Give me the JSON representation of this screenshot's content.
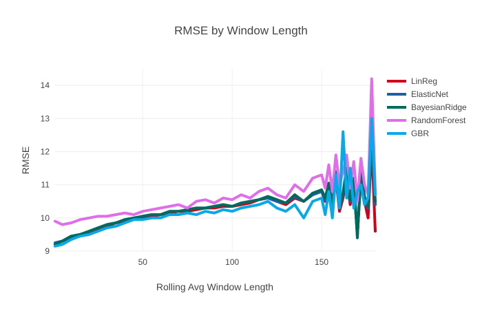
{
  "chart_data": {
    "type": "line",
    "title": "RMSE by Window Length",
    "xlabel": "Rolling Avg Window Length",
    "ylabel": "RMSE",
    "xlim": [
      1,
      180
    ],
    "ylim": [
      9,
      14.5
    ],
    "xticks": [
      50,
      100,
      150
    ],
    "yticks": [
      9,
      10,
      11,
      12,
      13,
      14
    ],
    "grid": true,
    "legend": "top-right, outside plot",
    "x": [
      1,
      5,
      10,
      15,
      20,
      25,
      30,
      35,
      40,
      45,
      50,
      55,
      60,
      65,
      70,
      75,
      80,
      85,
      90,
      95,
      100,
      105,
      110,
      115,
      120,
      125,
      130,
      135,
      140,
      145,
      150,
      152,
      154,
      156,
      158,
      160,
      162,
      164,
      166,
      168,
      170,
      172,
      174,
      176,
      178,
      180
    ],
    "series": [
      {
        "name": "LinReg",
        "color": "#d0021b",
        "values": [
          9.2,
          9.3,
          9.4,
          9.5,
          9.55,
          9.65,
          9.75,
          9.85,
          9.9,
          9.95,
          10.0,
          10.05,
          10.1,
          10.15,
          10.2,
          10.2,
          10.25,
          10.3,
          10.3,
          10.35,
          10.35,
          10.4,
          10.45,
          10.55,
          10.6,
          10.5,
          10.4,
          10.6,
          10.5,
          10.7,
          10.8,
          10.5,
          10.9,
          10.3,
          11.2,
          10.2,
          10.6,
          11.2,
          10.4,
          11.0,
          9.5,
          11.2,
          10.5,
          10.0,
          12.2,
          9.6
        ]
      },
      {
        "name": "ElasticNet",
        "color": "#1f5fa8",
        "values": [
          9.25,
          9.3,
          9.45,
          9.5,
          9.6,
          9.7,
          9.8,
          9.85,
          9.95,
          10.0,
          10.05,
          10.1,
          10.1,
          10.2,
          10.2,
          10.25,
          10.3,
          10.3,
          10.35,
          10.4,
          10.35,
          10.45,
          10.5,
          10.55,
          10.6,
          10.5,
          10.45,
          10.65,
          10.5,
          10.7,
          10.8,
          10.55,
          11.0,
          10.35,
          11.3,
          10.3,
          10.7,
          11.4,
          10.5,
          11.1,
          9.45,
          11.4,
          10.6,
          10.3,
          12.4,
          10.4
        ]
      },
      {
        "name": "BayesianRidge",
        "color": "#006b5d",
        "values": [
          9.2,
          9.3,
          9.45,
          9.5,
          9.6,
          9.7,
          9.8,
          9.85,
          9.95,
          10.0,
          10.05,
          10.1,
          10.1,
          10.2,
          10.2,
          10.25,
          10.3,
          10.3,
          10.35,
          10.4,
          10.35,
          10.45,
          10.5,
          10.55,
          10.65,
          10.55,
          10.45,
          10.7,
          10.5,
          10.75,
          10.85,
          10.6,
          11.05,
          10.4,
          11.4,
          10.35,
          10.75,
          11.5,
          10.55,
          11.2,
          9.4,
          11.5,
          10.65,
          10.35,
          12.6,
          10.5
        ]
      },
      {
        "name": "RandomForest",
        "color": "#e06ee8",
        "values": [
          9.9,
          9.8,
          9.85,
          9.95,
          10.0,
          10.05,
          10.05,
          10.1,
          10.15,
          10.1,
          10.2,
          10.25,
          10.3,
          10.35,
          10.4,
          10.3,
          10.5,
          10.55,
          10.45,
          10.6,
          10.55,
          10.7,
          10.6,
          10.8,
          10.9,
          10.7,
          10.6,
          11.0,
          10.8,
          11.2,
          11.3,
          10.9,
          11.6,
          10.8,
          11.9,
          11.0,
          11.4,
          11.9,
          10.9,
          11.7,
          10.5,
          11.8,
          11.0,
          10.7,
          14.2,
          10.8
        ]
      },
      {
        "name": "GBR",
        "color": "#08a9e8",
        "values": [
          9.15,
          9.2,
          9.35,
          9.45,
          9.5,
          9.6,
          9.7,
          9.75,
          9.85,
          9.95,
          9.95,
          10.0,
          10.0,
          10.1,
          10.1,
          10.15,
          10.1,
          10.2,
          10.15,
          10.25,
          10.2,
          10.3,
          10.35,
          10.4,
          10.5,
          10.3,
          10.2,
          10.4,
          10.0,
          10.5,
          10.6,
          10.1,
          10.8,
          10.0,
          11.3,
          10.3,
          12.6,
          10.6,
          11.5,
          10.3,
          10.8,
          11.0,
          10.4,
          10.6,
          13.0,
          10.7
        ]
      }
    ]
  }
}
